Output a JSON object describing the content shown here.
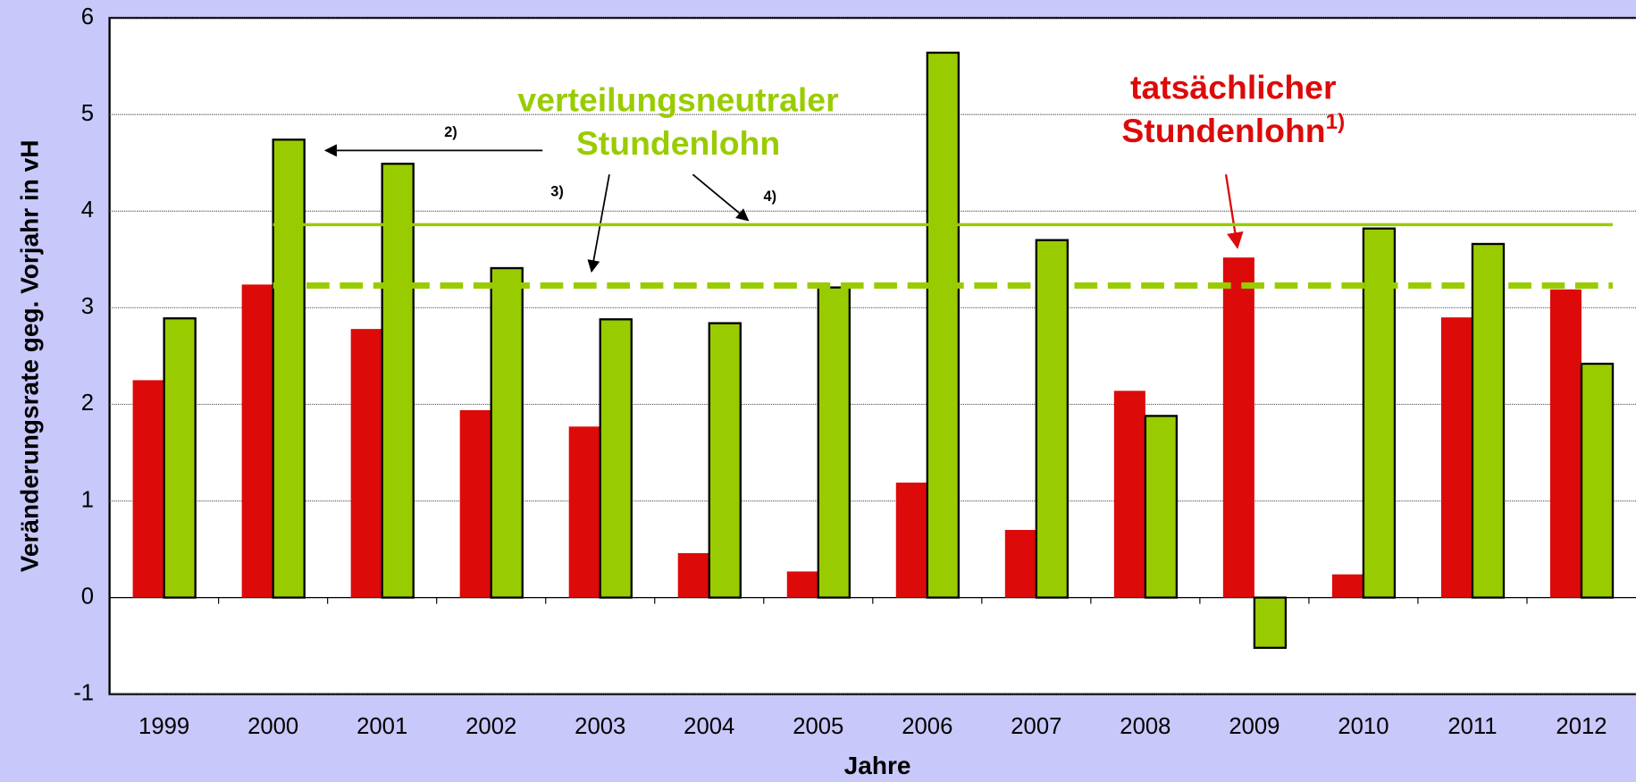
{
  "chart_data": {
    "type": "bar",
    "y_label": "Veränderungsrate geg. Vorjahr in vH",
    "x_label": "Jahre",
    "categories": [
      "1999",
      "2000",
      "2001",
      "2002",
      "2003",
      "2004",
      "2005",
      "2006",
      "2007",
      "2008",
      "2009",
      "2010",
      "2011",
      "2012"
    ],
    "series": [
      {
        "name": "tatsächlicher Stundenlohn",
        "color": "#dd0a0a",
        "values": [
          2.25,
          3.24,
          2.78,
          1.94,
          1.77,
          0.46,
          0.27,
          1.19,
          0.7,
          2.14,
          3.52,
          0.24,
          2.9,
          3.19
        ]
      },
      {
        "name": "verteilungsneutraler Stundenlohn",
        "color": "#99cc00",
        "values": [
          2.89,
          4.74,
          4.49,
          3.41,
          2.88,
          2.84,
          3.21,
          5.64,
          3.7,
          1.88,
          -0.52,
          3.82,
          3.66,
          2.42
        ]
      }
    ],
    "reference_lines": [
      {
        "value": 3.86,
        "style": "solid",
        "color": "#99cc00"
      },
      {
        "value": 3.23,
        "style": "dashed",
        "color": "#99cc00"
      }
    ],
    "annotations": [
      "1)",
      "2)",
      "3)",
      "4)"
    ],
    "ylim": [
      -1,
      6
    ],
    "yticks": [
      -1,
      0,
      1,
      2,
      3,
      4,
      5,
      6
    ],
    "grid": true
  }
}
